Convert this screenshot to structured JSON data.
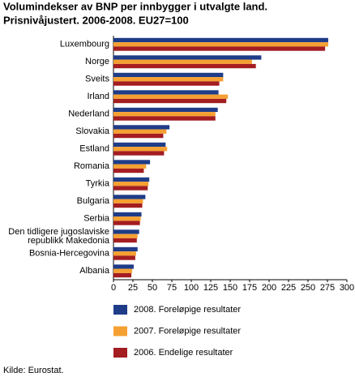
{
  "chart_data": {
    "type": "hbar",
    "title": "Volumindekser av BNP per innbygger i utvalgte land.",
    "subtitle": "Prisnivåjustert. 2006-2008. EU27=100",
    "categories": [
      "Luxembourg",
      "Norge",
      "Sveits",
      "Irland",
      "Nederland",
      "Slovakia",
      "Estland",
      "Romania",
      "Tyrkia",
      "Bulgaria",
      "Serbia",
      "Den tidligere jugoslaviske\nrepublikk Makedonia",
      "Bosnia-Hercegovina",
      "Albania"
    ],
    "series": [
      {
        "name": "2008. Foreløpige resultater",
        "color": "#1f3c88",
        "values": [
          276,
          190,
          141,
          135,
          134,
          72,
          67,
          47,
          46,
          41,
          36,
          33,
          31,
          26
        ]
      },
      {
        "name": "2007. Foreløpige resultater",
        "color": "#f5a032",
        "values": [
          276,
          178,
          141,
          147,
          131,
          68,
          69,
          42,
          45,
          38,
          35,
          31,
          29,
          24
        ]
      },
      {
        "name": "2006. Endelige resultater",
        "color": "#a31d21",
        "values": [
          272,
          183,
          136,
          145,
          131,
          64,
          65,
          39,
          44,
          37,
          34,
          30,
          28,
          23
        ]
      }
    ],
    "xlim": [
      0,
      300
    ],
    "xticks": [
      0,
      25,
      50,
      75,
      100,
      125,
      150,
      175,
      200,
      225,
      250,
      275,
      300
    ],
    "grid": false,
    "source": "Kilde: Eurostat."
  }
}
